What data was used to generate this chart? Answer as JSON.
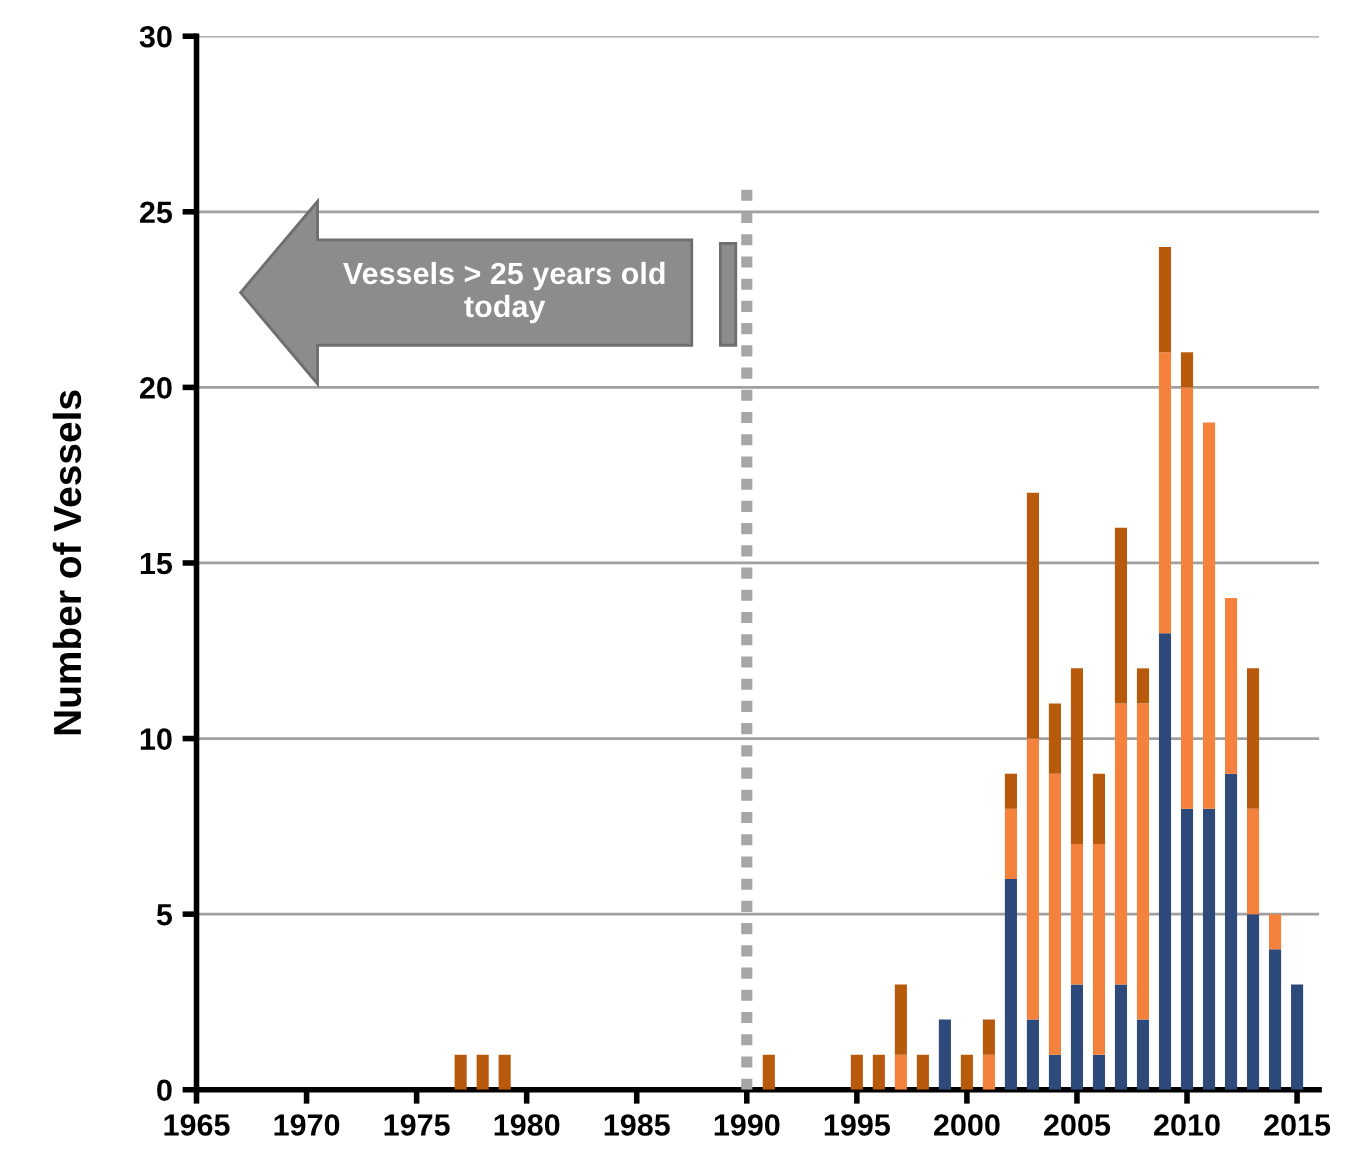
{
  "chart_data": {
    "type": "bar",
    "stacked": true,
    "ylabel": "Number of Vessels",
    "x": [
      1977,
      1978,
      1979,
      1991,
      1995,
      1996,
      1997,
      1998,
      1999,
      2000,
      2001,
      2002,
      2003,
      2004,
      2005,
      2006,
      2007,
      2008,
      2009,
      2010,
      2011,
      2012,
      2013,
      2014,
      2015
    ],
    "series": [
      {
        "color": "#2e4a7a",
        "values": [
          null,
          null,
          null,
          null,
          null,
          null,
          null,
          null,
          2,
          null,
          null,
          6,
          2,
          1,
          3,
          1,
          3,
          2,
          13,
          8,
          8,
          9,
          5,
          4,
          3
        ]
      },
      {
        "color": "#f4823c",
        "values": [
          null,
          null,
          null,
          null,
          null,
          null,
          1,
          null,
          null,
          null,
          1,
          2,
          8,
          8,
          4,
          6,
          8,
          9,
          8,
          12,
          11,
          5,
          3,
          1,
          null
        ]
      },
      {
        "color": "#b85a0c",
        "values": [
          1,
          1,
          1,
          1,
          1,
          1,
          2,
          1,
          null,
          1,
          1,
          1,
          7,
          2,
          5,
          2,
          5,
          1,
          3,
          1,
          null,
          null,
          4,
          null,
          null
        ]
      }
    ],
    "xlim": [
      1965,
      2016
    ],
    "xticks": [
      1965,
      1970,
      1975,
      1980,
      1985,
      1990,
      1995,
      2000,
      2005,
      2010,
      2015
    ],
    "ylim": [
      0,
      30
    ],
    "yticks": [
      0,
      5,
      10,
      15,
      20,
      25,
      30
    ],
    "grid": "y",
    "ref_lines": [
      {
        "axis": "x",
        "value": 1990,
        "color": "#a6a6a6",
        "line_style": "dotted"
      }
    ],
    "annotations": [
      "Vessels > 25 years old today"
    ]
  }
}
